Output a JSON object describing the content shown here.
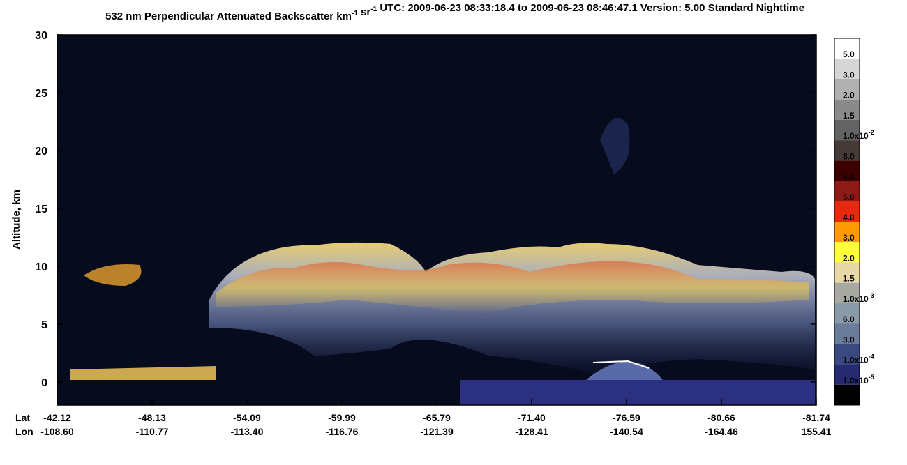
{
  "chart_data": {
    "type": "heatmap",
    "title": [
      "532 nm Perpendicular Attenuated Backscatter km",
      {
        "sup": "-1"
      },
      " sr",
      {
        "sup": "-1"
      },
      "  UTC: 2009-06-23 08:33:18.4 to 2009-06-23 08:46:47.1  Version: 5.00 Standard Nighttime"
    ],
    "y_label": "Altitude, km",
    "ylim": [
      -2,
      30
    ],
    "yticks": [
      0,
      5,
      10,
      15,
      20,
      25,
      30
    ],
    "x_rows": [
      {
        "name": "Lat",
        "labels": [
          "-42.12",
          "-48.13",
          "-54.09",
          "-59.99",
          "-65.79",
          "-71.40",
          "-76.59",
          "-80.66",
          "-81.74"
        ]
      },
      {
        "name": "Lon",
        "labels": [
          "-108.60",
          "-110.77",
          "-113.40",
          "-116.76",
          "-121.39",
          "-128.41",
          "-140.54",
          "-164.46",
          "155.41"
        ]
      }
    ],
    "colorbar": {
      "colors": [
        "#ffffff",
        "#d6d6d6",
        "#b0b0b0",
        "#8a8a8a",
        "#636363",
        "#453a38",
        "#3c0000",
        "#8c1a16",
        "#e8280f",
        "#ff9a00",
        "#ffff3a",
        "#e8d8a8",
        "#a8aaa2",
        "#8a9aa8",
        "#6a7c98",
        "#3a4a80",
        "#262a70",
        "#000000"
      ],
      "labels": [
        "5.0",
        "3.0",
        "2.0",
        "1.5",
        {
          "text": "1.0x10",
          "sup": "-2"
        },
        "8.0",
        "6.0",
        "5.0",
        "4.0",
        "3.0",
        "2.0",
        "1.5",
        {
          "text": "1.0x10",
          "sup": "-3"
        },
        "6.0",
        "3.0",
        {
          "text": "1.0x10",
          "sup": "-4"
        },
        {
          "text": "1.0x10",
          "sup": "-5"
        }
      ]
    }
  }
}
